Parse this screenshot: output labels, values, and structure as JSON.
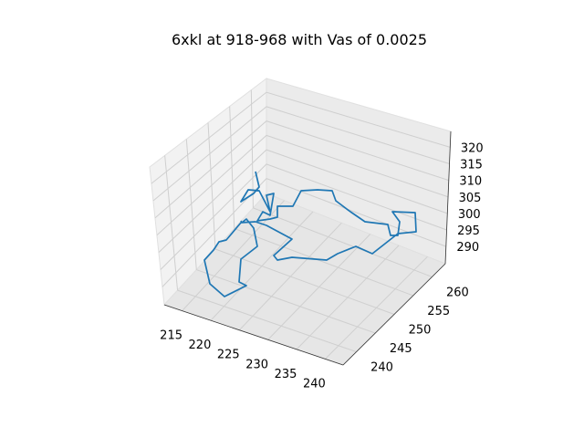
{
  "chart_data": {
    "type": "line3d",
    "title": "6xkl at 918-968 with Vas of 0.0025",
    "xlabel": "",
    "ylabel": "",
    "zlabel": "",
    "x_ticks": [
      "215",
      "220",
      "225",
      "230",
      "235",
      "240"
    ],
    "y_ticks": [
      "240",
      "245",
      "250",
      "255",
      "260"
    ],
    "z_ticks": [
      "290",
      "295",
      "300",
      "305",
      "310",
      "315",
      "320"
    ],
    "grid": true,
    "legend": "none",
    "series_color": "#1f77b4",
    "panel_colors": {
      "back": "#f2f2f2",
      "side": "#ebebeb",
      "floor": "#e6e6e6",
      "grid": "#cfcfcf",
      "edge": "#bdbdbd"
    },
    "series": [
      {
        "trace": [
          [
            280,
            188
          ],
          [
            284,
            205
          ],
          [
            278,
            212
          ],
          [
            264,
            221
          ],
          [
            272,
            208
          ],
          [
            284,
            209
          ],
          [
            296,
            232
          ],
          [
            292,
            214
          ],
          [
            300,
            212
          ],
          [
            296,
            236
          ],
          [
            288,
            232
          ],
          [
            282,
            242
          ],
          [
            296,
            240
          ],
          [
            304,
            238
          ],
          [
            304,
            226
          ],
          [
            321,
            226
          ],
          [
            330,
            209
          ],
          [
            348,
            208
          ],
          [
            364,
            209
          ],
          [
            368,
            220
          ],
          [
            384,
            232
          ],
          [
            400,
            243
          ],
          [
            425,
            246
          ],
          [
            428,
            258
          ],
          [
            436,
            258
          ],
          [
            438,
            243
          ],
          [
            430,
            232
          ],
          [
            455,
            233
          ],
          [
            456,
            254
          ],
          [
            436,
            256
          ],
          [
            408,
            278
          ],
          [
            390,
            270
          ],
          [
            370,
            278
          ],
          [
            358,
            285
          ],
          [
            320,
            282
          ],
          [
            304,
            285
          ],
          [
            300,
            280
          ],
          [
            320,
            262
          ],
          [
            292,
            247
          ],
          [
            280,
            243
          ],
          [
            264,
            244
          ],
          [
            248,
            263
          ],
          [
            240,
            265
          ],
          [
            234,
            274
          ],
          [
            224,
            285
          ],
          [
            230,
            311
          ],
          [
            246,
            325
          ],
          [
            270,
            313
          ],
          [
            262,
            309
          ],
          [
            264,
            284
          ],
          [
            282,
            270
          ],
          [
            278,
            250
          ],
          [
            270,
            240
          ],
          [
            265,
            244
          ],
          [
            264,
            242
          ]
        ]
      }
    ]
  }
}
